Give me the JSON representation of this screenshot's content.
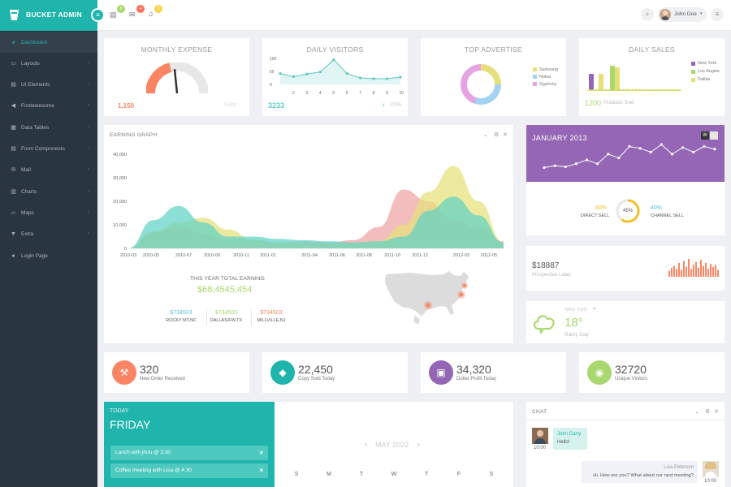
{
  "app": {
    "title": "BUCKET ADMIN"
  },
  "colors": {
    "accent": "#1fb5ac",
    "sidebar": "#2a3542",
    "red": "#fa8564",
    "purple": "#9466b5",
    "olive": "#a9d86e",
    "yellow": "#e6e07a",
    "pink": "#f0a3a3"
  },
  "header": {
    "menu_badge": "8",
    "mail_badge": "4",
    "bell_badge": "3",
    "user_name": "John Doe",
    "icons": [
      "menu-toggle-icon",
      "tasks-icon",
      "mail-icon",
      "bell-icon",
      "search-icon",
      "avatar",
      "list-icon"
    ]
  },
  "sidebar": {
    "items": [
      {
        "label": "Dashboard",
        "icon": "dashboard-icon"
      },
      {
        "label": "Layouts",
        "icon": "laptop-icon"
      },
      {
        "label": "UI Elements",
        "icon": "book-icon"
      },
      {
        "label": "Fontawesome",
        "icon": "bullhorn-icon"
      },
      {
        "label": "Data Tables",
        "icon": "table-icon"
      },
      {
        "label": "Form Components",
        "icon": "tasks-icon"
      },
      {
        "label": "Mail",
        "icon": "envelope-icon"
      },
      {
        "label": "Charts",
        "icon": "bar-chart-icon"
      },
      {
        "label": "Maps",
        "icon": "map-icon"
      },
      {
        "label": "Extra",
        "icon": "glass-icon"
      },
      {
        "label": "Login Page",
        "icon": "user-icon"
      }
    ]
  },
  "monthly_expense": {
    "title": "MONTHLY EXPENSE",
    "value": "1,150",
    "status": "Safe",
    "gauge_fraction": 0.42
  },
  "daily_visitors": {
    "title": "DAILY VISITORS",
    "value": "3233",
    "change": "15%",
    "chart_data": {
      "type": "line",
      "x": [
        1,
        2,
        3,
        4,
        5,
        6,
        7,
        8,
        9,
        10
      ],
      "values": [
        42,
        30,
        40,
        48,
        95,
        42,
        25,
        22,
        22,
        28
      ],
      "yticks": [
        "100",
        "50",
        "0"
      ],
      "xticks": [
        "2",
        "3",
        "4",
        "5",
        "6",
        "7",
        "8",
        "9",
        "10"
      ],
      "ylim": [
        0,
        100
      ]
    }
  },
  "top_advertise": {
    "title": "TOP ADVERTISE",
    "chart_data": {
      "type": "pie",
      "labels": [
        "Samsung",
        "Nokia",
        "Syphony"
      ],
      "values": [
        25,
        30,
        45
      ],
      "colors": [
        "#e6e07a",
        "#a2d3f2",
        "#e6a3e3"
      ]
    }
  },
  "daily_sales": {
    "title": "DAILY SALES",
    "value": "1200",
    "caption": "Products Sold",
    "chart_data": {
      "type": "bar",
      "legend": [
        "New York",
        "Los Angels",
        "Dallas"
      ],
      "colors": [
        "#9466b5",
        "#a9d86e",
        "#e6e07a"
      ],
      "values": [
        [
          20,
          0,
          20
        ],
        [
          0,
          30,
          28
        ],
        [
          0,
          0,
          0
        ]
      ],
      "line_values": [
        1,
        1,
        1,
        1,
        1,
        1,
        1,
        1,
        1,
        1,
        1,
        1,
        1,
        1,
        1,
        1,
        1,
        1,
        1,
        1,
        1,
        1,
        1,
        1,
        1,
        1,
        1,
        1,
        1,
        1
      ]
    }
  },
  "earning_graph": {
    "title": "EARNING GRAPH",
    "chart_data": {
      "type": "area",
      "yticks": [
        "40,000",
        "30,000",
        "20,000",
        "10,000",
        "0"
      ],
      "xticks": [
        "2010-03",
        "2010-05",
        "2010-07",
        "2010-09",
        "2010-11",
        "2011-01",
        "2011-04",
        "2011-06",
        "2011-08",
        "2011-10",
        "2011-12",
        "2012-03",
        "2012-05"
      ],
      "ylim": [
        0,
        40000
      ],
      "series": [
        {
          "color": "#f0a3a3",
          "values": [
            0,
            7000,
            9000,
            6500,
            3500,
            3500,
            2500,
            3000,
            2500,
            3500,
            9000,
            25000,
            20000,
            12000,
            9000,
            3000
          ]
        },
        {
          "color": "#e6e07a",
          "values": [
            0,
            7000,
            11000,
            13000,
            8000,
            3500,
            2500,
            2000,
            2000,
            2000,
            3000,
            10000,
            24000,
            35000,
            20000,
            2500
          ]
        },
        {
          "color": "#5fd3c5",
          "values": [
            0,
            12000,
            18000,
            11000,
            5000,
            5000,
            4000,
            3500,
            3000,
            2500,
            3000,
            5000,
            16000,
            22000,
            14000,
            2500
          ]
        }
      ]
    },
    "total_label": "THIS YEAR TOTAL EARNING",
    "total_value": "$68,4545,454",
    "cities": [
      {
        "value": "$734503",
        "name": "ROCKY MT,NC",
        "color": "#5bc0de"
      },
      {
        "value": "$734503",
        "name": "DALLAS/FW,TX",
        "color": "#a9d86e"
      },
      {
        "value": "$734503",
        "name": "MILLVILLE,NJ",
        "color": "#fa8564"
      }
    ]
  },
  "january": {
    "title": "JANUARY 2013",
    "chart_data": {
      "type": "line",
      "values": [
        20,
        25,
        22,
        30,
        40,
        30,
        55,
        45,
        75,
        70,
        60,
        80,
        55,
        72,
        60,
        75,
        68
      ]
    },
    "direct": {
      "value": "60%",
      "label": "DIRECT SELL"
    },
    "channel": {
      "value": "40%",
      "label": "CHANNEL SELL"
    },
    "center": "45%"
  },
  "prospective": {
    "value": "$18887",
    "label": "Prospective Label",
    "chart_data": {
      "type": "bar",
      "values": [
        30,
        45,
        55,
        40,
        70,
        35,
        80,
        50,
        90,
        40,
        60,
        75,
        45,
        85,
        55,
        70,
        40,
        65,
        50,
        60,
        35
      ]
    }
  },
  "weather": {
    "city": "New York",
    "temp": "18°",
    "desc": "Rainy Day",
    "icon": "cloud-icon"
  },
  "stats": [
    {
      "value": "320",
      "label": "New Order Received",
      "color": "#fa8564",
      "icon": "gavel-icon"
    },
    {
      "value": "22,450",
      "label": "Copy Sold Today",
      "color": "#1fb5ac",
      "icon": "tag-icon"
    },
    {
      "value": "34,320",
      "label": "Dollar Profit Today",
      "color": "#9466b5",
      "icon": "money-icon"
    },
    {
      "value": "32720",
      "label": "Unique Visitors",
      "color": "#a9d86e",
      "icon": "eye-icon"
    }
  ],
  "today": {
    "label": "TODAY",
    "day": "FRIDAY",
    "events": [
      "Lunch with jhon @ 3:30",
      "Coffee meeting with Lisa @ 4:30"
    ]
  },
  "calendar": {
    "month": "MAY 2022",
    "weekdays": [
      "S",
      "M",
      "T",
      "W",
      "T",
      "F",
      "S"
    ]
  },
  "chat": {
    "title": "CHAT",
    "messages": [
      {
        "name": "John Carry",
        "text": "Hello!",
        "time": "10:00"
      },
      {
        "name": "Lisa Peterson",
        "text": "Hi, How are you? What about our next meeting?",
        "time": "10:00"
      }
    ]
  }
}
